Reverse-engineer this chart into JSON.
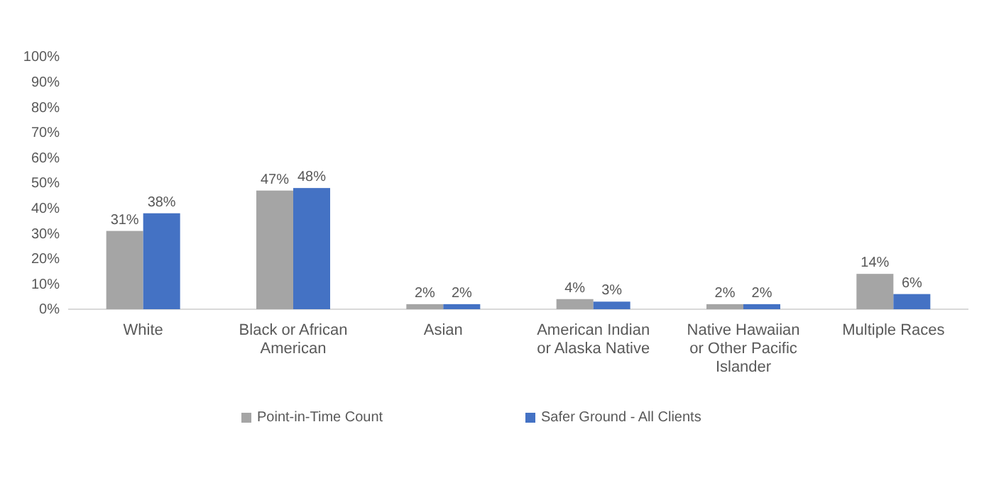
{
  "chart_data": {
    "type": "bar",
    "categories": [
      "White",
      "Black or African American",
      "Asian",
      "American Indian or Alaska Native",
      "Native Hawaiian or Other Pacific Islander",
      "Multiple Races"
    ],
    "series": [
      {
        "name": "Point-in-Time Count",
        "color": "#a5a5a5",
        "values": [
          31,
          47,
          2,
          4,
          2,
          14
        ],
        "value_labels": [
          "31%",
          "47%",
          "2%",
          "4%",
          "2%",
          "14%"
        ]
      },
      {
        "name": "Safer Ground - All Clients",
        "color": "#4472c4",
        "values": [
          38,
          48,
          2,
          3,
          2,
          6
        ],
        "value_labels": [
          "38%",
          "48%",
          "2%",
          "3%",
          "2%",
          "6%"
        ]
      }
    ],
    "ylim": [
      0,
      100
    ],
    "yticks": [
      {
        "value": 0,
        "label": "0%"
      },
      {
        "value": 10,
        "label": "10%"
      },
      {
        "value": 20,
        "label": "20%"
      },
      {
        "value": 30,
        "label": "30%"
      },
      {
        "value": 40,
        "label": "40%"
      },
      {
        "value": 50,
        "label": "50%"
      },
      {
        "value": 60,
        "label": "60%"
      },
      {
        "value": 70,
        "label": "70%"
      },
      {
        "value": 80,
        "label": "80%"
      },
      {
        "value": 90,
        "label": "90%"
      },
      {
        "value": 100,
        "label": "100%"
      }
    ],
    "grid": false,
    "legend": "bottom"
  }
}
